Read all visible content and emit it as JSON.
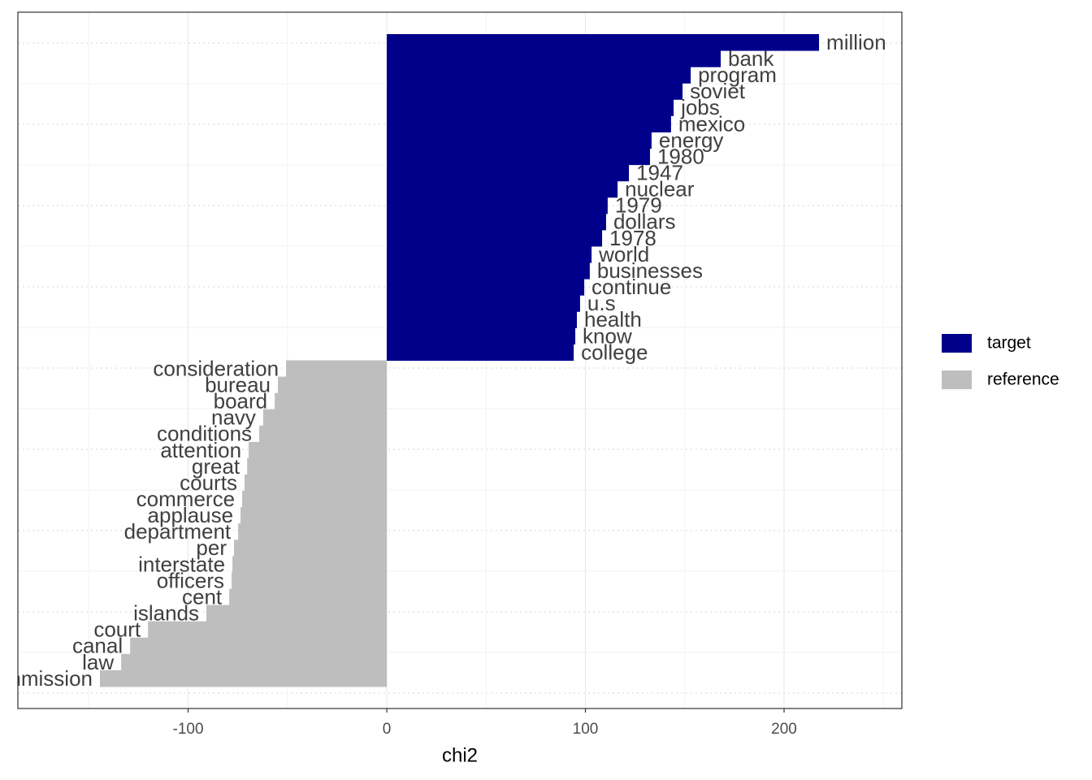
{
  "chart_data": {
    "type": "bar",
    "orientation": "horizontal",
    "x_label": "chi2",
    "xlim": [
      -185.7,
      259.3
    ],
    "xticks": [
      -100,
      0,
      100,
      200
    ],
    "grid": true,
    "legend_position": "right",
    "series": [
      {
        "name": "target",
        "color": "#00008b",
        "categories": [
          "million",
          "bank",
          "program",
          "soviet",
          "jobs",
          "mexico",
          "energy",
          "1980",
          "1947",
          "nuclear",
          "1979",
          "dollars",
          "1978",
          "world",
          "businesses",
          "continue",
          "u.s",
          "health",
          "know",
          "college"
        ],
        "values": [
          217.6,
          168.1,
          153,
          148.9,
          144.4,
          143.1,
          133.3,
          132.5,
          121.9,
          116.2,
          111.2,
          110.4,
          108.4,
          103.1,
          102.2,
          99.4,
          97.3,
          95.7,
          94.9,
          94.1
        ]
      },
      {
        "name": "reference",
        "color": "#bebebe",
        "categories": [
          "consideration",
          "bureau",
          "board",
          "navy",
          "conditions",
          "attention",
          "great",
          "courts",
          "commerce",
          "applause",
          "department",
          "per",
          "interstate",
          "officers",
          "cent",
          "islands",
          "court",
          "canal",
          "law",
          "commission"
        ],
        "values": [
          -50.7,
          -54.8,
          -56.4,
          -62.2,
          -64.2,
          -69.5,
          -70.3,
          -71.6,
          -72.8,
          -73.6,
          -74.8,
          -76.9,
          -77.7,
          -78.1,
          -79.3,
          -90.8,
          -120.2,
          -129.2,
          -133.7,
          -144.4
        ]
      }
    ]
  }
}
